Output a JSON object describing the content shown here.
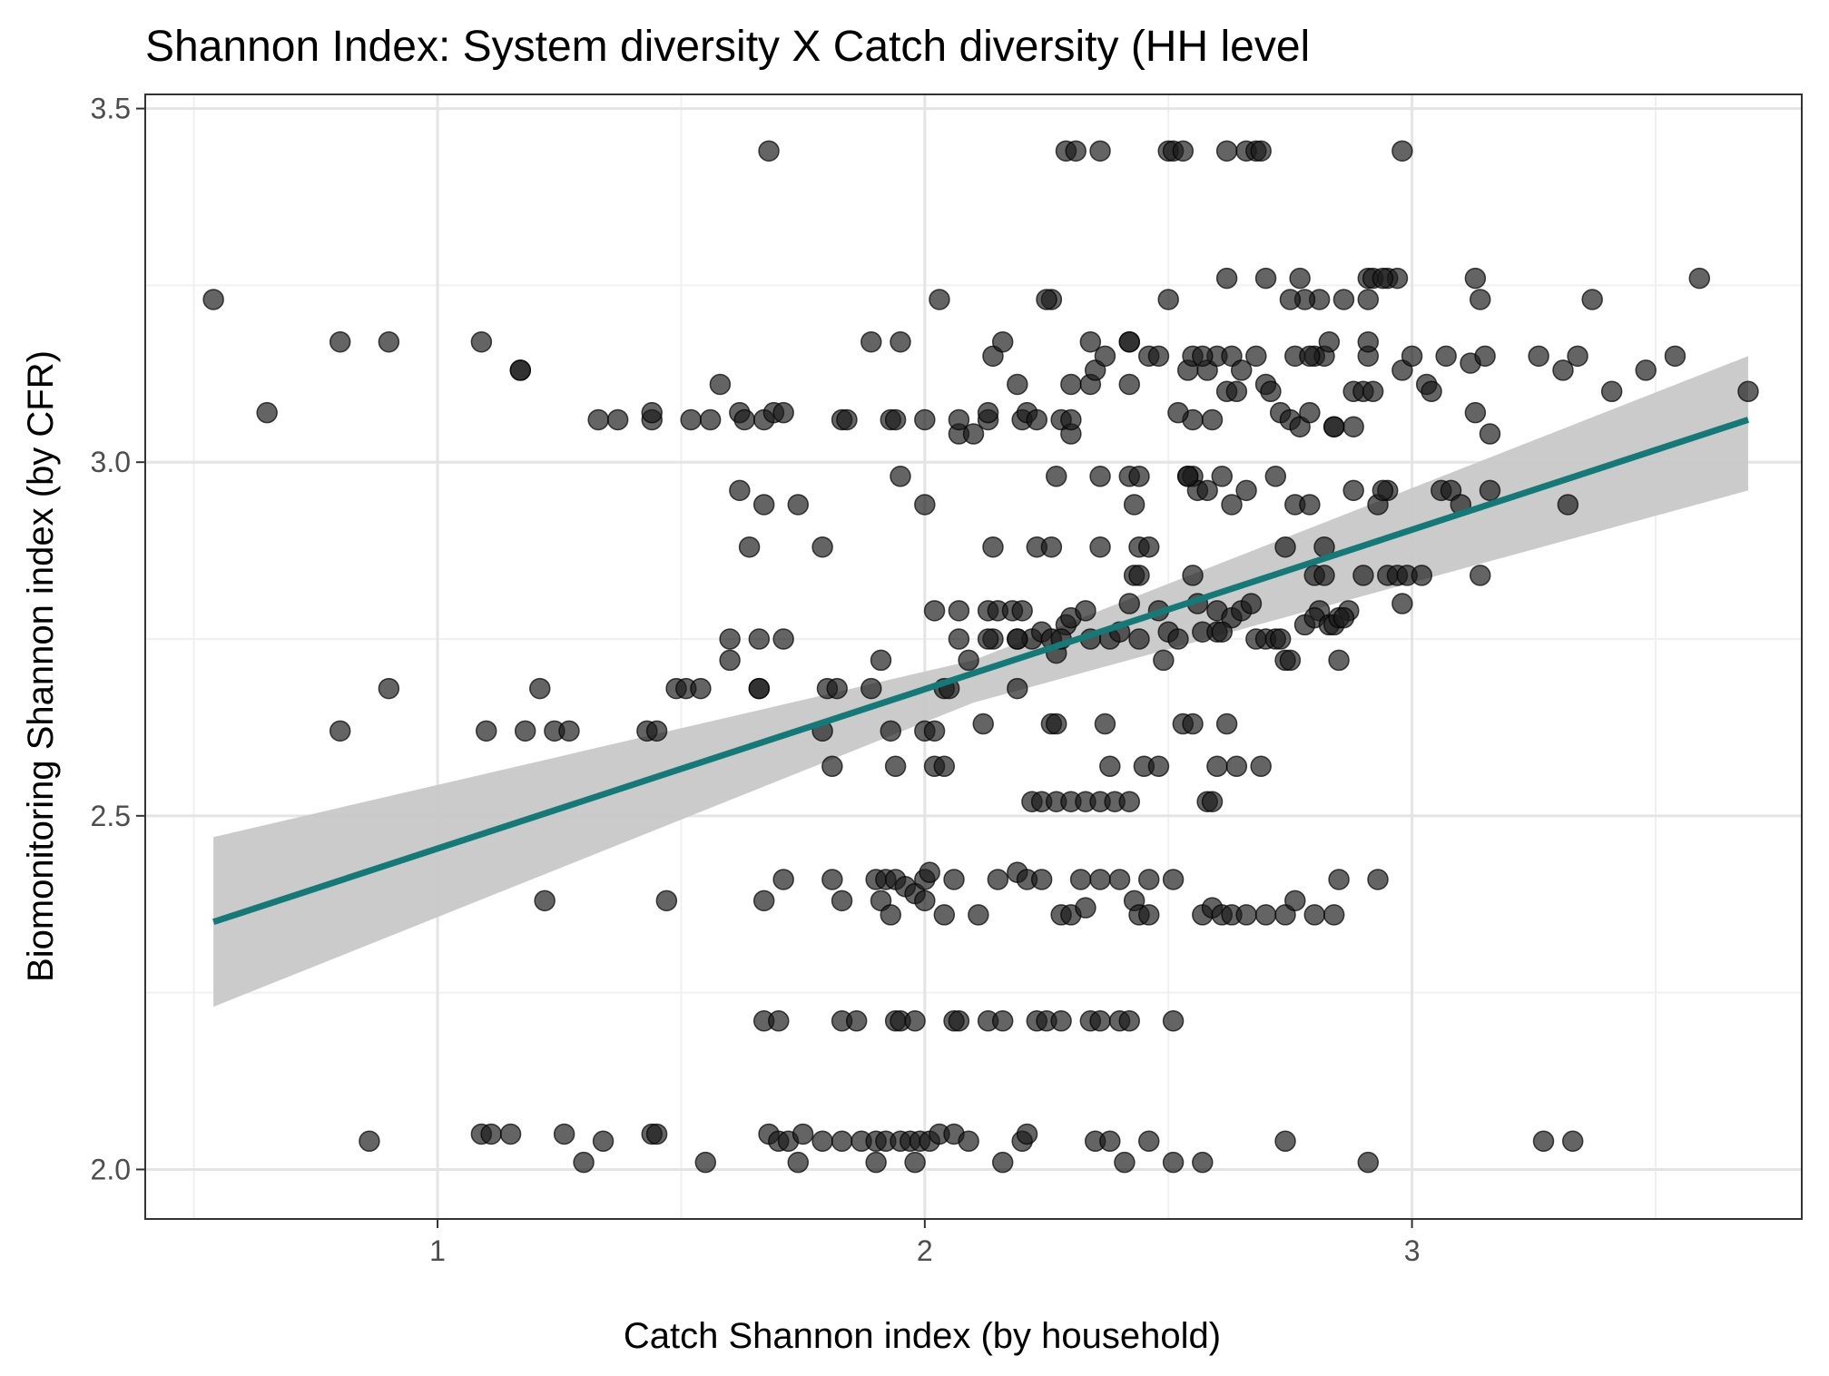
{
  "chart_data": {
    "type": "scatter",
    "title": "Shannon Index: System diversity X Catch diversity (HH level",
    "xlabel": "Catch Shannon index (by household)",
    "ylabel": "Biomonitoring Shannon index (by CFR)",
    "xlim": [
      0.4,
      3.8
    ],
    "ylim": [
      1.93,
      3.52
    ],
    "x_ticks": [
      1,
      2,
      3
    ],
    "y_ticks": [
      2.0,
      2.5,
      3.0,
      3.5
    ],
    "x_tick_labels": [
      "1",
      "2",
      "3"
    ],
    "y_tick_labels": [
      "2.0",
      "2.5",
      "3.0",
      "3.5"
    ],
    "grid": true,
    "point_color": "#1a1a1a",
    "line_color": "#147a78",
    "band_color": "#c8c8c8",
    "regression": {
      "x": [
        0.54,
        3.69
      ],
      "y": [
        2.35,
        3.06
      ],
      "ci_lower": [
        2.23,
        2.96
      ],
      "ci_upper": [
        2.47,
        3.15
      ],
      "ci_mid_x": 2.1,
      "ci_mid_lower": [
        2.66
      ],
      "ci_mid_upper": [
        2.72
      ]
    },
    "points": [
      [
        0.54,
        3.23
      ],
      [
        0.65,
        3.07
      ],
      [
        0.8,
        3.17
      ],
      [
        0.9,
        3.17
      ],
      [
        1.09,
        3.17
      ],
      [
        1.17,
        3.13
      ],
      [
        1.17,
        3.13
      ],
      [
        0.8,
        2.62
      ],
      [
        0.9,
        2.68
      ],
      [
        1.1,
        2.62
      ],
      [
        1.18,
        2.62
      ],
      [
        1.21,
        2.68
      ],
      [
        1.24,
        2.62
      ],
      [
        1.27,
        2.62
      ],
      [
        1.22,
        2.38
      ],
      [
        0.86,
        2.04
      ],
      [
        1.09,
        2.05
      ],
      [
        1.11,
        2.05
      ],
      [
        1.15,
        2.05
      ],
      [
        1.26,
        2.05
      ],
      [
        1.3,
        2.01
      ],
      [
        1.34,
        2.04
      ],
      [
        1.33,
        3.06
      ],
      [
        1.37,
        3.06
      ],
      [
        1.44,
        3.06
      ],
      [
        1.44,
        3.07
      ],
      [
        1.52,
        3.06
      ],
      [
        1.56,
        3.06
      ],
      [
        1.58,
        3.11
      ],
      [
        1.62,
        3.07
      ],
      [
        1.63,
        3.06
      ],
      [
        1.67,
        3.06
      ],
      [
        1.69,
        3.07
      ],
      [
        1.71,
        3.07
      ],
      [
        1.43,
        2.62
      ],
      [
        1.45,
        2.62
      ],
      [
        1.49,
        2.68
      ],
      [
        1.51,
        2.68
      ],
      [
        1.54,
        2.68
      ],
      [
        1.47,
        2.38
      ],
      [
        1.44,
        2.05
      ],
      [
        1.45,
        2.05
      ],
      [
        1.55,
        2.01
      ],
      [
        1.68,
        3.44
      ],
      [
        1.62,
        2.96
      ],
      [
        1.67,
        2.94
      ],
      [
        1.64,
        2.88
      ],
      [
        1.74,
        2.94
      ],
      [
        1.6,
        2.75
      ],
      [
        1.6,
        2.72
      ],
      [
        1.66,
        2.75
      ],
      [
        1.66,
        2.68
      ],
      [
        1.71,
        2.75
      ],
      [
        1.66,
        2.68
      ],
      [
        1.67,
        2.38
      ],
      [
        1.71,
        2.41
      ],
      [
        1.67,
        2.21
      ],
      [
        1.7,
        2.21
      ],
      [
        1.68,
        2.05
      ],
      [
        1.7,
        2.04
      ],
      [
        1.72,
        2.04
      ],
      [
        1.74,
        2.01
      ],
      [
        1.75,
        2.05
      ],
      [
        1.79,
        2.04
      ],
      [
        1.83,
        2.04
      ],
      [
        1.79,
        2.88
      ],
      [
        1.8,
        2.68
      ],
      [
        1.82,
        2.68
      ],
      [
        1.79,
        2.62
      ],
      [
        1.81,
        2.57
      ],
      [
        1.81,
        2.41
      ],
      [
        1.83,
        2.38
      ],
      [
        1.83,
        2.21
      ],
      [
        1.86,
        2.21
      ],
      [
        1.83,
        3.06
      ],
      [
        1.84,
        3.06
      ],
      [
        1.89,
        3.17
      ],
      [
        1.93,
        3.06
      ],
      [
        1.94,
        3.06
      ],
      [
        1.95,
        3.17
      ],
      [
        2.0,
        3.06
      ],
      [
        2.03,
        3.23
      ],
      [
        1.95,
        2.98
      ],
      [
        2.0,
        2.94
      ],
      [
        1.91,
        2.72
      ],
      [
        1.89,
        2.68
      ],
      [
        1.93,
        2.62
      ],
      [
        2.0,
        2.62
      ],
      [
        2.02,
        2.62
      ],
      [
        1.94,
        2.57
      ],
      [
        2.02,
        2.57
      ],
      [
        2.04,
        2.57
      ],
      [
        2.02,
        2.79
      ],
      [
        2.04,
        2.68
      ],
      [
        2.05,
        2.68
      ],
      [
        1.9,
        2.41
      ],
      [
        1.92,
        2.41
      ],
      [
        1.94,
        2.41
      ],
      [
        1.96,
        2.4
      ],
      [
        1.98,
        2.39
      ],
      [
        2.0,
        2.41
      ],
      [
        2.01,
        2.42
      ],
      [
        1.91,
        2.38
      ],
      [
        1.93,
        2.36
      ],
      [
        2.0,
        2.38
      ],
      [
        2.04,
        2.36
      ],
      [
        1.94,
        2.21
      ],
      [
        1.95,
        2.21
      ],
      [
        1.98,
        2.21
      ],
      [
        1.87,
        2.04
      ],
      [
        1.9,
        2.04
      ],
      [
        1.92,
        2.04
      ],
      [
        1.95,
        2.04
      ],
      [
        1.97,
        2.04
      ],
      [
        1.99,
        2.04
      ],
      [
        2.01,
        2.04
      ],
      [
        1.9,
        2.01
      ],
      [
        1.98,
        2.01
      ],
      [
        2.03,
        2.05
      ],
      [
        2.07,
        3.04
      ],
      [
        2.1,
        3.04
      ],
      [
        2.13,
        3.06
      ],
      [
        2.13,
        3.07
      ],
      [
        2.14,
        3.15
      ],
      [
        2.16,
        3.17
      ],
      [
        2.19,
        3.11
      ],
      [
        2.2,
        3.06
      ],
      [
        2.21,
        3.07
      ],
      [
        2.23,
        3.06
      ],
      [
        2.07,
        2.79
      ],
      [
        2.07,
        2.75
      ],
      [
        2.09,
        2.72
      ],
      [
        2.13,
        2.79
      ],
      [
        2.15,
        2.79
      ],
      [
        2.14,
        2.75
      ],
      [
        2.18,
        2.79
      ],
      [
        2.19,
        2.75
      ],
      [
        2.2,
        2.79
      ],
      [
        2.22,
        2.75
      ],
      [
        2.12,
        2.63
      ],
      [
        2.19,
        2.68
      ],
      [
        2.14,
        2.88
      ],
      [
        2.06,
        2.41
      ],
      [
        2.11,
        2.36
      ],
      [
        2.15,
        2.41
      ],
      [
        2.19,
        2.42
      ],
      [
        2.21,
        2.41
      ],
      [
        2.06,
        2.21
      ],
      [
        2.07,
        2.21
      ],
      [
        2.13,
        2.21
      ],
      [
        2.16,
        2.21
      ],
      [
        2.06,
        2.05
      ],
      [
        2.09,
        2.04
      ],
      [
        2.16,
        2.01
      ],
      [
        2.2,
        2.04
      ],
      [
        2.21,
        2.05
      ],
      [
        2.26,
        3.23
      ],
      [
        2.25,
        3.23
      ],
      [
        2.29,
        3.44
      ],
      [
        2.31,
        3.44
      ],
      [
        2.36,
        3.44
      ],
      [
        2.28,
        3.06
      ],
      [
        2.3,
        3.04
      ],
      [
        2.3,
        3.06
      ],
      [
        2.3,
        3.11
      ],
      [
        2.34,
        3.11
      ],
      [
        2.35,
        3.13
      ],
      [
        2.34,
        3.17
      ],
      [
        2.37,
        3.15
      ],
      [
        2.42,
        3.17
      ],
      [
        2.42,
        3.11
      ],
      [
        2.46,
        3.15
      ],
      [
        2.48,
        3.15
      ],
      [
        2.27,
        2.98
      ],
      [
        2.36,
        2.98
      ],
      [
        2.42,
        2.98
      ],
      [
        2.44,
        2.98
      ],
      [
        2.43,
        2.94
      ],
      [
        2.23,
        2.88
      ],
      [
        2.26,
        2.88
      ],
      [
        2.36,
        2.88
      ],
      [
        2.44,
        2.88
      ],
      [
        2.46,
        2.88
      ],
      [
        2.43,
        2.84
      ],
      [
        2.42,
        2.8
      ],
      [
        2.24,
        2.76
      ],
      [
        2.26,
        2.75
      ],
      [
        2.27,
        2.73
      ],
      [
        2.29,
        2.77
      ],
      [
        2.3,
        2.78
      ],
      [
        2.33,
        2.79
      ],
      [
        2.34,
        2.75
      ],
      [
        2.38,
        2.75
      ],
      [
        2.4,
        2.76
      ],
      [
        2.44,
        2.75
      ],
      [
        2.26,
        2.63
      ],
      [
        2.27,
        2.63
      ],
      [
        2.37,
        2.63
      ],
      [
        2.22,
        2.52
      ],
      [
        2.24,
        2.52
      ],
      [
        2.27,
        2.52
      ],
      [
        2.3,
        2.52
      ],
      [
        2.33,
        2.52
      ],
      [
        2.36,
        2.52
      ],
      [
        2.39,
        2.52
      ],
      [
        2.42,
        2.52
      ],
      [
        2.38,
        2.57
      ],
      [
        2.45,
        2.57
      ],
      [
        2.48,
        2.57
      ],
      [
        2.24,
        2.41
      ],
      [
        2.28,
        2.36
      ],
      [
        2.3,
        2.36
      ],
      [
        2.32,
        2.41
      ],
      [
        2.33,
        2.37
      ],
      [
        2.36,
        2.41
      ],
      [
        2.4,
        2.41
      ],
      [
        2.43,
        2.38
      ],
      [
        2.44,
        2.36
      ],
      [
        2.46,
        2.36
      ],
      [
        2.46,
        2.41
      ],
      [
        2.23,
        2.21
      ],
      [
        2.25,
        2.21
      ],
      [
        2.28,
        2.21
      ],
      [
        2.34,
        2.21
      ],
      [
        2.36,
        2.21
      ],
      [
        2.4,
        2.21
      ],
      [
        2.42,
        2.21
      ],
      [
        2.35,
        2.04
      ],
      [
        2.38,
        2.04
      ],
      [
        2.41,
        2.01
      ],
      [
        2.46,
        2.04
      ],
      [
        2.5,
        3.44
      ],
      [
        2.51,
        3.44
      ],
      [
        2.53,
        3.44
      ],
      [
        2.62,
        3.44
      ],
      [
        2.66,
        3.44
      ],
      [
        2.68,
        3.44
      ],
      [
        2.5,
        3.23
      ],
      [
        2.54,
        3.13
      ],
      [
        2.55,
        3.15
      ],
      [
        2.58,
        3.13
      ],
      [
        2.6,
        3.15
      ],
      [
        2.62,
        3.26
      ],
      [
        2.63,
        3.15
      ],
      [
        2.65,
        3.13
      ],
      [
        2.62,
        3.1
      ],
      [
        2.59,
        3.06
      ],
      [
        2.55,
        3.06
      ],
      [
        2.52,
        3.07
      ],
      [
        2.54,
        2.98
      ],
      [
        2.55,
        2.98
      ],
      [
        2.56,
        2.96
      ],
      [
        2.58,
        2.96
      ],
      [
        2.61,
        2.98
      ],
      [
        2.63,
        2.94
      ],
      [
        2.66,
        2.96
      ],
      [
        2.55,
        2.84
      ],
      [
        2.48,
        2.79
      ],
      [
        2.5,
        2.76
      ],
      [
        2.52,
        2.75
      ],
      [
        2.56,
        2.8
      ],
      [
        2.57,
        2.76
      ],
      [
        2.6,
        2.79
      ],
      [
        2.6,
        2.76
      ],
      [
        2.63,
        2.78
      ],
      [
        2.65,
        2.79
      ],
      [
        2.67,
        2.8
      ],
      [
        2.49,
        2.72
      ],
      [
        2.53,
        2.63
      ],
      [
        2.55,
        2.63
      ],
      [
        2.62,
        2.63
      ],
      [
        2.58,
        2.52
      ],
      [
        2.59,
        2.52
      ],
      [
        2.6,
        2.57
      ],
      [
        2.64,
        2.57
      ],
      [
        2.69,
        2.57
      ],
      [
        2.51,
        2.41
      ],
      [
        2.57,
        2.36
      ],
      [
        2.59,
        2.37
      ],
      [
        2.61,
        2.36
      ],
      [
        2.63,
        2.36
      ],
      [
        2.66,
        2.36
      ],
      [
        2.7,
        2.36
      ],
      [
        2.74,
        2.36
      ],
      [
        2.51,
        2.21
      ],
      [
        2.51,
        2.01
      ],
      [
        2.57,
        2.01
      ],
      [
        2.68,
        3.15
      ],
      [
        2.7,
        3.26
      ],
      [
        2.7,
        3.11
      ],
      [
        2.71,
        3.1
      ],
      [
        2.73,
        3.07
      ],
      [
        2.75,
        3.06
      ],
      [
        2.76,
        3.15
      ],
      [
        2.77,
        3.05
      ],
      [
        2.79,
        3.07
      ],
      [
        2.8,
        3.15
      ],
      [
        2.81,
        3.23
      ],
      [
        2.82,
        3.15
      ],
      [
        2.83,
        3.17
      ],
      [
        2.77,
        3.26
      ],
      [
        2.78,
        3.23
      ],
      [
        2.79,
        3.15
      ],
      [
        2.72,
        2.98
      ],
      [
        2.76,
        2.94
      ],
      [
        2.79,
        2.94
      ],
      [
        2.74,
        2.88
      ],
      [
        2.82,
        2.88
      ],
      [
        2.8,
        2.84
      ],
      [
        2.82,
        2.84
      ],
      [
        2.81,
        2.79
      ],
      [
        2.78,
        2.77
      ],
      [
        2.8,
        2.78
      ],
      [
        2.83,
        2.77
      ],
      [
        2.84,
        2.77
      ],
      [
        2.68,
        2.75
      ],
      [
        2.7,
        2.75
      ],
      [
        2.72,
        2.75
      ],
      [
        2.74,
        2.72
      ],
      [
        2.75,
        2.72
      ],
      [
        2.76,
        2.38
      ],
      [
        2.8,
        2.36
      ],
      [
        2.84,
        2.36
      ],
      [
        2.85,
        2.41
      ],
      [
        2.74,
        2.04
      ],
      [
        2.86,
        3.23
      ],
      [
        2.88,
        3.1
      ],
      [
        2.9,
        3.1
      ],
      [
        2.91,
        3.15
      ],
      [
        2.91,
        3.17
      ],
      [
        2.91,
        3.26
      ],
      [
        2.92,
        3.26
      ],
      [
        2.92,
        3.1
      ],
      [
        2.95,
        3.26
      ],
      [
        2.97,
        3.26
      ],
      [
        2.98,
        3.13
      ],
      [
        3.0,
        3.15
      ],
      [
        3.03,
        3.11
      ],
      [
        3.04,
        3.1
      ],
      [
        2.84,
        3.05
      ],
      [
        2.88,
        3.05
      ],
      [
        2.88,
        2.96
      ],
      [
        2.93,
        2.94
      ],
      [
        2.95,
        2.96
      ],
      [
        2.9,
        2.84
      ],
      [
        2.95,
        2.84
      ],
      [
        2.97,
        2.84
      ],
      [
        2.98,
        2.8
      ],
      [
        2.99,
        2.84
      ],
      [
        3.02,
        2.84
      ],
      [
        2.87,
        2.79
      ],
      [
        2.85,
        2.78
      ],
      [
        2.86,
        2.78
      ],
      [
        2.85,
        2.72
      ],
      [
        2.93,
        2.41
      ],
      [
        2.91,
        2.01
      ],
      [
        3.07,
        3.15
      ],
      [
        3.12,
        3.14
      ],
      [
        3.13,
        3.07
      ],
      [
        3.15,
        3.15
      ],
      [
        3.16,
        3.04
      ],
      [
        3.13,
        3.26
      ],
      [
        3.14,
        3.23
      ],
      [
        3.06,
        2.96
      ],
      [
        3.08,
        2.96
      ],
      [
        3.1,
        2.94
      ],
      [
        3.16,
        2.96
      ],
      [
        3.14,
        2.84
      ],
      [
        3.26,
        3.15
      ],
      [
        3.31,
        3.13
      ],
      [
        3.34,
        3.15
      ],
      [
        3.37,
        3.23
      ],
      [
        3.41,
        3.1
      ],
      [
        3.48,
        3.13
      ],
      [
        3.54,
        3.15
      ],
      [
        3.59,
        3.26
      ],
      [
        3.69,
        3.1
      ],
      [
        3.32,
        2.94
      ],
      [
        3.27,
        2.04
      ],
      [
        3.33,
        2.04
      ],
      [
        2.98,
        3.44
      ],
      [
        2.91,
        3.23
      ],
      [
        2.94,
        3.26
      ],
      [
        2.94,
        2.96
      ],
      [
        2.75,
        3.23
      ],
      [
        2.84,
        3.05
      ],
      [
        2.69,
        3.44
      ],
      [
        2.57,
        3.15
      ],
      [
        2.44,
        2.84
      ],
      [
        2.54,
        2.98
      ],
      [
        2.07,
        3.06
      ],
      [
        2.42,
        3.17
      ],
      [
        2.13,
        2.75
      ],
      [
        2.19,
        2.75
      ],
      [
        2.61,
        2.76
      ],
      [
        2.73,
        2.75
      ],
      [
        2.64,
        3.1
      ],
      [
        2.28,
        2.75
      ]
    ]
  }
}
